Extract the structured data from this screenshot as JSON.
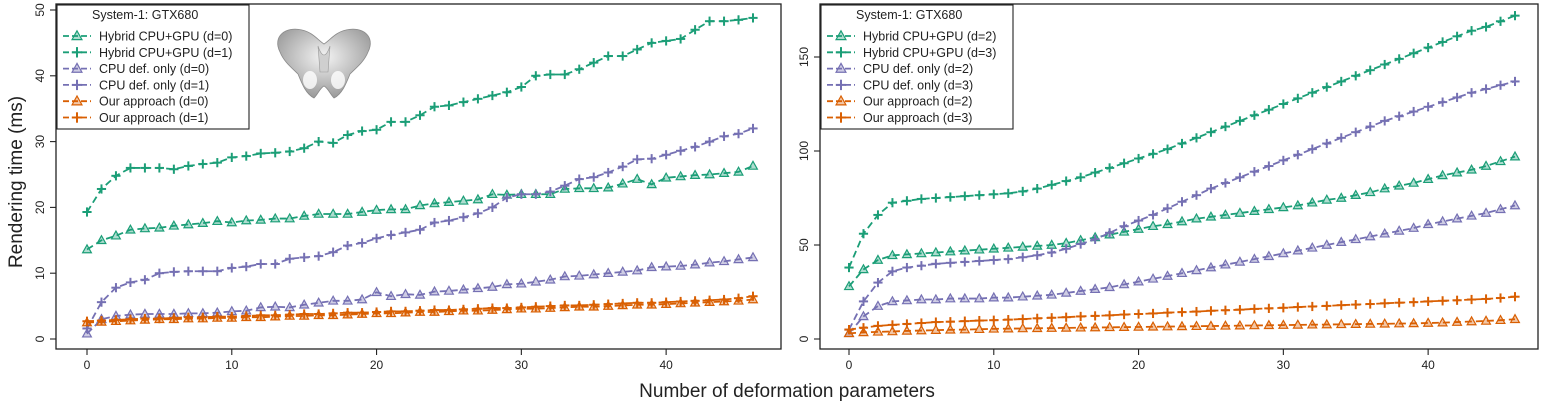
{
  "figure": {
    "xlabel": "Number of deformation parameters",
    "ylabel": "Rendering time (ms)"
  },
  "colors": {
    "teal": "#1b9e77",
    "purple": "#7570b3",
    "orange": "#d95f02"
  },
  "chart_data": [
    {
      "type": "line",
      "legend_title": "System-1: GTX680",
      "legend_position": "top-left",
      "has_inset_image": true,
      "xlim": [
        0,
        46
      ],
      "ylim": [
        0,
        50
      ],
      "xticks": [
        0,
        10,
        20,
        30,
        40
      ],
      "yticks": [
        0,
        10,
        20,
        30,
        40,
        50
      ],
      "x": [
        0,
        1,
        2,
        3,
        4,
        5,
        6,
        7,
        8,
        9,
        10,
        11,
        12,
        13,
        14,
        15,
        16,
        17,
        18,
        19,
        20,
        21,
        22,
        23,
        24,
        25,
        26,
        27,
        28,
        29,
        30,
        31,
        32,
        33,
        34,
        35,
        36,
        37,
        38,
        39,
        40,
        41,
        42,
        43,
        44,
        45,
        46
      ],
      "series": [
        {
          "name": "Hybrid CPU+GPU (d=0)",
          "color": "teal",
          "marker": "triangle",
          "dash": true,
          "values": [
            13.6,
            15.0,
            15.7,
            16.6,
            16.8,
            16.9,
            17.2,
            17.4,
            17.6,
            17.9,
            17.7,
            18.0,
            18.1,
            18.3,
            18.3,
            18.7,
            19.0,
            19.0,
            19.0,
            19.3,
            19.6,
            19.7,
            19.7,
            20.3,
            20.6,
            20.8,
            21.0,
            21.2,
            22.0,
            21.9,
            22.0,
            22.0,
            22.0,
            22.8,
            22.9,
            22.9,
            23.0,
            23.6,
            24.3,
            23.5,
            24.5,
            24.7,
            24.9,
            25.0,
            25.2,
            25.4,
            26.3
          ]
        },
        {
          "name": "Hybrid CPU+GPU (d=1)",
          "color": "teal",
          "marker": "plus",
          "dash": true,
          "values": [
            19.3,
            22.8,
            24.8,
            26.0,
            26.0,
            26.0,
            25.8,
            26.3,
            26.6,
            26.8,
            27.6,
            27.8,
            28.2,
            28.3,
            28.5,
            29.0,
            30.0,
            29.8,
            31.0,
            31.6,
            31.8,
            33.0,
            33.0,
            34.0,
            35.3,
            35.5,
            36.0,
            36.5,
            37.0,
            37.5,
            38.3,
            40.0,
            40.2,
            40.2,
            41.0,
            42.0,
            43.0,
            43.0,
            44.0,
            45.0,
            45.3,
            45.6,
            47.0,
            48.3,
            48.3,
            48.5,
            48.8
          ]
        },
        {
          "name": "CPU def. only (d=0)",
          "color": "purple",
          "marker": "triangle",
          "dash": true,
          "values": [
            0.8,
            3.0,
            3.5,
            3.7,
            3.8,
            3.8,
            3.8,
            3.9,
            3.9,
            4.0,
            4.2,
            4.3,
            4.8,
            4.9,
            4.8,
            5.2,
            5.5,
            5.8,
            5.8,
            6.0,
            7.1,
            6.5,
            6.8,
            6.7,
            7.2,
            7.3,
            7.5,
            7.7,
            7.9,
            8.3,
            8.4,
            8.7,
            9.0,
            9.5,
            9.6,
            9.8,
            10.0,
            10.2,
            10.4,
            10.9,
            11.0,
            11.1,
            11.3,
            11.6,
            11.8,
            12.1,
            12.4
          ]
        },
        {
          "name": "CPU def. only (d=1)",
          "color": "purple",
          "marker": "plus",
          "dash": true,
          "values": [
            1.6,
            5.6,
            7.8,
            8.6,
            9.0,
            10.0,
            10.2,
            10.3,
            10.3,
            10.3,
            10.8,
            11.0,
            11.4,
            11.4,
            12.2,
            12.4,
            12.6,
            13.2,
            14.2,
            14.6,
            15.3,
            15.8,
            16.2,
            16.6,
            17.7,
            18.0,
            18.5,
            19.1,
            20.0,
            21.5,
            22.0,
            22.0,
            22.4,
            23.3,
            24.3,
            24.6,
            25.3,
            26.2,
            27.3,
            27.4,
            28.0,
            28.6,
            29.2,
            30.0,
            30.8,
            31.2,
            32.0
          ]
        },
        {
          "name": "Our approach (d=0)",
          "color": "orange",
          "marker": "triangle",
          "dash": true,
          "values": [
            2.5,
            2.6,
            2.7,
            2.8,
            2.9,
            3.0,
            3.0,
            3.1,
            3.1,
            3.2,
            3.2,
            3.3,
            3.3,
            3.4,
            3.5,
            3.5,
            3.6,
            3.6,
            3.7,
            3.8,
            3.9,
            3.9,
            4.0,
            4.1,
            4.1,
            4.2,
            4.3,
            4.3,
            4.4,
            4.5,
            4.6,
            4.6,
            4.7,
            4.8,
            4.9,
            4.9,
            5.0,
            5.1,
            5.2,
            5.2,
            5.3,
            5.4,
            5.5,
            5.6,
            5.7,
            5.8,
            6.0
          ]
        },
        {
          "name": "Our approach (d=1)",
          "color": "orange",
          "marker": "plus",
          "dash": true,
          "values": [
            2.7,
            2.8,
            2.9,
            3.0,
            3.1,
            3.1,
            3.2,
            3.3,
            3.3,
            3.4,
            3.4,
            3.5,
            3.6,
            3.6,
            3.7,
            3.8,
            3.8,
            3.9,
            4.0,
            4.0,
            4.1,
            4.2,
            4.2,
            4.3,
            4.4,
            4.4,
            4.5,
            4.6,
            4.7,
            4.7,
            4.8,
            4.9,
            5.0,
            5.1,
            5.1,
            5.2,
            5.3,
            5.4,
            5.5,
            5.5,
            5.6,
            5.7,
            5.8,
            5.9,
            6.0,
            6.2,
            6.5
          ]
        }
      ]
    },
    {
      "type": "line",
      "legend_title": "System-1: GTX680",
      "legend_position": "top-left",
      "xlim": [
        0,
        46
      ],
      "ylim": [
        0,
        175
      ],
      "xticks": [
        0,
        10,
        20,
        30,
        40
      ],
      "yticks": [
        0,
        50,
        100,
        150
      ],
      "x": [
        0,
        1,
        2,
        3,
        4,
        5,
        6,
        7,
        8,
        9,
        10,
        11,
        12,
        13,
        14,
        15,
        16,
        17,
        18,
        19,
        20,
        21,
        22,
        23,
        24,
        25,
        26,
        27,
        28,
        29,
        30,
        31,
        32,
        33,
        34,
        35,
        36,
        37,
        38,
        39,
        40,
        41,
        42,
        43,
        44,
        45,
        46
      ],
      "series": [
        {
          "name": "Hybrid CPU+GPU (d=2)",
          "color": "teal",
          "marker": "triangle",
          "dash": true,
          "values": [
            28.0,
            37.0,
            42.0,
            44.5,
            45.0,
            45.5,
            46.0,
            46.5,
            47.0,
            47.5,
            48.0,
            48.5,
            49.0,
            49.5,
            50.0,
            51.0,
            52.5,
            54.0,
            55.5,
            57.0,
            58.5,
            60.0,
            61.0,
            62.5,
            64.0,
            65.0,
            66.0,
            67.0,
            68.0,
            69.0,
            70.0,
            71.0,
            72.5,
            74.0,
            75.0,
            76.5,
            78.0,
            80.0,
            81.5,
            83.0,
            85.0,
            87.0,
            88.5,
            90.0,
            92.0,
            94.5,
            97.0
          ]
        },
        {
          "name": "Hybrid CPU+GPU (d=3)",
          "color": "teal",
          "marker": "plus",
          "dash": true,
          "values": [
            38.0,
            56.0,
            66.0,
            72.5,
            73.5,
            74.5,
            75.0,
            75.5,
            76.0,
            76.5,
            77.0,
            77.5,
            78.5,
            80.0,
            82.0,
            84.0,
            86.0,
            88.5,
            91.0,
            93.5,
            96.0,
            98.5,
            101.0,
            104.0,
            107.0,
            110.0,
            113.0,
            116.0,
            119.0,
            122.0,
            125.0,
            128.0,
            131.0,
            134.0,
            137.0,
            140.0,
            143.0,
            146.0,
            149.0,
            152.0,
            155.0,
            158.0,
            161.0,
            164.0,
            166.0,
            169.0,
            172.0
          ]
        },
        {
          "name": "CPU def. only (d=2)",
          "color": "purple",
          "marker": "triangle",
          "dash": true,
          "values": [
            3.0,
            12.0,
            17.5,
            20.0,
            20.5,
            21.0,
            21.0,
            21.5,
            21.5,
            21.5,
            22.0,
            22.0,
            22.5,
            23.0,
            23.5,
            24.5,
            25.5,
            26.5,
            27.5,
            29.0,
            30.5,
            32.0,
            33.5,
            35.0,
            36.5,
            38.0,
            39.5,
            41.0,
            42.5,
            44.0,
            45.5,
            47.0,
            48.5,
            50.0,
            51.5,
            53.0,
            54.5,
            56.0,
            57.5,
            59.0,
            61.0,
            62.5,
            64.0,
            65.5,
            67.0,
            69.0,
            71.0
          ]
        },
        {
          "name": "CPU def. only (d=3)",
          "color": "purple",
          "marker": "plus",
          "dash": true,
          "values": [
            5.0,
            20.0,
            30.0,
            36.0,
            38.0,
            39.0,
            40.0,
            40.5,
            41.0,
            41.5,
            42.0,
            42.5,
            43.5,
            44.5,
            46.0,
            48.0,
            50.5,
            53.0,
            56.5,
            60.0,
            63.0,
            66.0,
            69.5,
            73.0,
            76.5,
            80.0,
            83.0,
            86.0,
            89.0,
            92.0,
            95.0,
            98.0,
            101.0,
            104.0,
            107.0,
            110.0,
            113.0,
            116.0,
            118.5,
            121.0,
            123.5,
            126.0,
            128.5,
            131.0,
            133.0,
            135.0,
            137.0
          ]
        },
        {
          "name": "Our approach (d=2)",
          "color": "orange",
          "marker": "triangle",
          "dash": true,
          "values": [
            3.0,
            3.5,
            3.8,
            4.0,
            4.3,
            4.5,
            4.7,
            4.9,
            5.0,
            5.2,
            5.4,
            5.5,
            5.6,
            5.7,
            5.8,
            5.9,
            6.0,
            6.1,
            6.2,
            6.3,
            6.4,
            6.5,
            6.6,
            6.7,
            6.8,
            6.9,
            7.0,
            7.1,
            7.2,
            7.3,
            7.4,
            7.5,
            7.6,
            7.7,
            7.8,
            7.9,
            8.0,
            8.1,
            8.2,
            8.3,
            8.5,
            8.7,
            9.0,
            9.3,
            9.6,
            10.0,
            10.5
          ]
        },
        {
          "name": "Our approach (d=3)",
          "color": "orange",
          "marker": "plus",
          "dash": true,
          "values": [
            5.0,
            6.0,
            7.0,
            7.5,
            8.0,
            8.5,
            9.0,
            9.2,
            9.5,
            9.8,
            10.0,
            10.3,
            10.6,
            11.0,
            11.3,
            11.6,
            12.0,
            12.3,
            12.6,
            13.0,
            13.3,
            13.6,
            14.0,
            14.3,
            14.6,
            15.0,
            15.3,
            15.6,
            16.0,
            16.3,
            16.6,
            17.0,
            17.3,
            17.6,
            18.0,
            18.3,
            18.6,
            19.0,
            19.3,
            19.6,
            20.0,
            20.3,
            20.6,
            21.0,
            21.3,
            21.8,
            22.5
          ]
        }
      ]
    }
  ]
}
